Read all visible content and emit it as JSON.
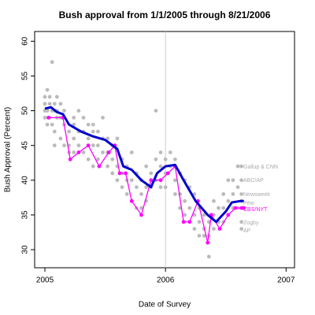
{
  "chart_data": {
    "type": "scatter",
    "title": "Bush approval from 1/1/2005 through 8/21/2006",
    "x_label": "Date of Survey",
    "y_label": "Bush Approval (Percent)",
    "xlim": [
      2004.915,
      2007.07
    ],
    "ylim": [
      27.4,
      61.4
    ],
    "xticks": [
      2005,
      2006,
      2007
    ],
    "yticks": [
      30,
      35,
      40,
      45,
      50,
      55,
      60
    ],
    "vline": 2006,
    "series": [
      {
        "color": "#bbbbbb",
        "mode": "points",
        "x": [
          2005,
          2005,
          2005,
          2005,
          2005.02,
          2005.02,
          2005.02,
          2005.04,
          2005.04,
          2005.04,
          2005.06,
          2005.06,
          2005.06,
          2005.08,
          2005.08,
          2005.08,
          2005.08,
          2005.1,
          2005.1,
          2005.1,
          2005.13,
          2005.13,
          2005.13,
          2005.16,
          2005.16,
          2005.16,
          2005.2,
          2005.2,
          2005.2,
          2005.24,
          2005.24,
          2005.24,
          2005.24,
          2005.28,
          2005.28,
          2005.28,
          2005.32,
          2005.32,
          2005.32,
          2005.36,
          2005.36,
          2005.36,
          2005.4,
          2005.4,
          2005.4,
          2005.4,
          2005.44,
          2005.44,
          2005.44,
          2005.48,
          2005.48,
          2005.48,
          2005.52,
          2005.52,
          2005.52,
          2005.56,
          2005.56,
          2005.56,
          2005.6,
          2005.6,
          2005.6,
          2005.64,
          2005.64,
          2005.64,
          2005.68,
          2005.68,
          2005.68,
          2005.72,
          2005.72,
          2005.72,
          2005.76,
          2005.76,
          2005.76,
          2005.8,
          2005.8,
          2005.8,
          2005.84,
          2005.84,
          2005.84,
          2005.88,
          2005.88,
          2005.92,
          2005.92,
          2005.92,
          2005.96,
          2005.96,
          2005.96,
          2006,
          2006,
          2006,
          2006.04,
          2006.04,
          2006.08,
          2006.08,
          2006.08,
          2006.12,
          2006.12,
          2006.12,
          2006.16,
          2006.16,
          2006.16,
          2006.2,
          2006.2,
          2006.24,
          2006.24,
          2006.24,
          2006.28,
          2006.28,
          2006.28,
          2006.32,
          2006.32,
          2006.32,
          2006.36,
          2006.36,
          2006.36,
          2006.4,
          2006.4,
          2006.4,
          2006.44,
          2006.44,
          2006.48,
          2006.48,
          2006.48,
          2006.52,
          2006.52,
          2006.52,
          2006.56,
          2006.56,
          2006.56,
          2006.6,
          2006.6,
          2006.6,
          2006.63,
          2006.63,
          2006.63,
          2006.63,
          2006.63,
          2006.63
        ],
        "values": [
          52,
          51,
          50,
          49,
          53,
          50,
          48,
          52,
          51,
          49,
          57,
          50,
          48,
          51,
          50,
          47,
          45,
          52,
          50,
          49,
          51,
          49,
          46,
          50,
          48,
          45,
          47,
          45,
          44,
          49,
          48,
          46,
          44,
          50,
          47,
          45,
          49,
          47,
          44,
          48,
          46,
          43,
          48,
          47,
          45,
          42,
          47,
          45,
          43,
          49,
          46,
          44,
          46,
          44,
          42,
          45,
          43,
          41,
          46,
          42,
          40,
          43,
          41,
          39,
          42,
          40,
          38,
          44,
          40,
          37,
          41,
          39,
          36,
          40,
          38,
          36,
          42,
          39,
          37,
          41,
          39,
          50,
          43,
          40,
          44,
          42,
          39,
          43,
          41,
          39,
          44,
          42,
          43,
          40,
          38,
          41,
          38,
          36,
          40,
          37,
          35,
          39,
          36,
          38,
          35,
          33,
          36,
          34,
          32,
          35,
          33,
          32,
          34,
          32,
          29,
          37,
          35,
          33,
          36,
          34,
          38,
          36,
          34,
          40,
          37,
          35,
          40,
          38,
          36,
          42,
          39,
          36,
          42,
          40,
          38,
          37,
          34,
          33
        ]
      },
      {
        "color": "#ff00ff",
        "mode": "line+points",
        "x": [
          2005.03,
          2005.15,
          2005.21,
          2005.28,
          2005.36,
          2005.45,
          2005.53,
          2005.58,
          2005.62,
          2005.67,
          2005.72,
          2005.8,
          2005.88,
          2005.96,
          2006.02,
          2006.08,
          2006.15,
          2006.2,
          2006.27,
          2006.35,
          2006.38,
          2006.45,
          2006.52,
          2006.58,
          2006.63,
          2006.65
        ],
        "values": [
          49,
          49,
          43,
          44,
          45,
          42,
          44,
          45,
          41,
          41,
          37,
          35,
          40,
          40,
          41,
          42,
          34,
          34,
          37,
          31,
          35,
          33,
          35,
          36,
          36,
          36
        ]
      },
      {
        "color": "#0000cc",
        "mode": "line",
        "x": [
          2005,
          2005.05,
          2005.1,
          2005.15,
          2005.2,
          2005.3,
          2005.4,
          2005.5,
          2005.6,
          2005.65,
          2005.72,
          2005.8,
          2005.88,
          2005.93,
          2006,
          2006.08,
          2006.15,
          2006.25,
          2006.35,
          2006.42,
          2006.5,
          2006.55,
          2006.62,
          2006.65
        ],
        "values": [
          50.3,
          50.5,
          49.8,
          49.5,
          48,
          47,
          46.3,
          45.8,
          44.5,
          42,
          41.5,
          40,
          39,
          41,
          42,
          42.2,
          40,
          37,
          35,
          34,
          35.5,
          36.8,
          37,
          37
        ]
      }
    ],
    "annotations": [
      {
        "text": "Gallup & CNN",
        "color": "#aaaaaa"
      },
      {
        "text": "ABC/AP",
        "color": "#aaaaaa"
      },
      {
        "text": "Newsweek",
        "color": "#aaaaaa"
      },
      {
        "text": "Pew",
        "color": "#aaaaaa"
      },
      {
        "text": "CBS/NYT",
        "color": "#ff00ff"
      },
      {
        "text": "Zogby",
        "color": "#aaaaaa"
      },
      {
        "text": "AP",
        "color": "#aaaaaa"
      }
    ]
  }
}
